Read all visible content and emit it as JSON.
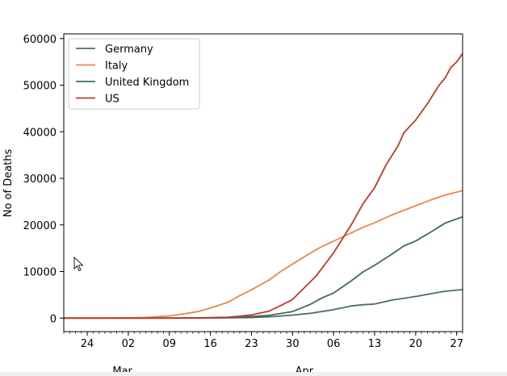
{
  "chart_data": {
    "type": "line",
    "title": "",
    "xlabel": "",
    "ylabel": "No of Deaths",
    "ylim": [
      -2900,
      61000
    ],
    "yticks": [
      0,
      10000,
      20000,
      30000,
      40000,
      50000,
      60000
    ],
    "x_date_range": [
      "2020-02-20",
      "2020-04-28"
    ],
    "x_major_ticks": [
      {
        "date": "2020-02-24",
        "label": "24"
      },
      {
        "date": "2020-03-02",
        "label": "02"
      },
      {
        "date": "2020-03-09",
        "label": "09"
      },
      {
        "date": "2020-03-16",
        "label": "16"
      },
      {
        "date": "2020-03-23",
        "label": "23"
      },
      {
        "date": "2020-03-30",
        "label": "30"
      },
      {
        "date": "2020-04-06",
        "label": "06"
      },
      {
        "date": "2020-04-13",
        "label": "13"
      },
      {
        "date": "2020-04-20",
        "label": "20"
      },
      {
        "date": "2020-04-27",
        "label": "27"
      }
    ],
    "x_month_labels": [
      {
        "date": "2020-03-01",
        "label": "Mar"
      },
      {
        "date": "2020-04-01",
        "label": "Apr"
      }
    ],
    "legend_position": "top-left",
    "grid": false,
    "series": [
      {
        "name": "Germany",
        "color": "#4e6e5d",
        "points": [
          [
            "2020-02-20",
            0
          ],
          [
            "2020-03-09",
            2
          ],
          [
            "2020-03-16",
            17
          ],
          [
            "2020-03-20",
            67
          ],
          [
            "2020-03-23",
            123
          ],
          [
            "2020-03-27",
            351
          ],
          [
            "2020-03-30",
            645
          ],
          [
            "2020-04-02",
            1017
          ],
          [
            "2020-04-06",
            1810
          ],
          [
            "2020-04-09",
            2607
          ],
          [
            "2020-04-11",
            2871
          ],
          [
            "2020-04-13",
            3022
          ],
          [
            "2020-04-16",
            3868
          ],
          [
            "2020-04-20",
            4642
          ],
          [
            "2020-04-23",
            5321
          ],
          [
            "2020-04-25",
            5760
          ],
          [
            "2020-04-28",
            6126
          ]
        ]
      },
      {
        "name": "Italy",
        "color": "#e8884c",
        "points": [
          [
            "2020-02-20",
            0
          ],
          [
            "2020-02-27",
            17
          ],
          [
            "2020-03-02",
            52
          ],
          [
            "2020-03-05",
            148
          ],
          [
            "2020-03-09",
            463
          ],
          [
            "2020-03-12",
            1016
          ],
          [
            "2020-03-14",
            1441
          ],
          [
            "2020-03-16",
            2158
          ],
          [
            "2020-03-19",
            3405
          ],
          [
            "2020-03-21",
            4825
          ],
          [
            "2020-03-23",
            6077
          ],
          [
            "2020-03-26",
            8165
          ],
          [
            "2020-03-28",
            10023
          ],
          [
            "2020-03-30",
            11591
          ],
          [
            "2020-04-02",
            13915
          ],
          [
            "2020-04-04",
            15362
          ],
          [
            "2020-04-06",
            16523
          ],
          [
            "2020-04-09",
            18279
          ],
          [
            "2020-04-11",
            19468
          ],
          [
            "2020-04-13",
            20465
          ],
          [
            "2020-04-16",
            22170
          ],
          [
            "2020-04-20",
            24114
          ],
          [
            "2020-04-23",
            25549
          ],
          [
            "2020-04-25",
            26384
          ],
          [
            "2020-04-28",
            27359
          ]
        ]
      },
      {
        "name": "United Kingdom",
        "color": "#3f6b55",
        "points": [
          [
            "2020-02-20",
            0
          ],
          [
            "2020-03-09",
            4
          ],
          [
            "2020-03-16",
            56
          ],
          [
            "2020-03-20",
            178
          ],
          [
            "2020-03-23",
            335
          ],
          [
            "2020-03-26",
            578
          ],
          [
            "2020-03-30",
            1415
          ],
          [
            "2020-04-02",
            2926
          ],
          [
            "2020-04-04",
            4320
          ],
          [
            "2020-04-06",
            5385
          ],
          [
            "2020-04-09",
            7993
          ],
          [
            "2020-04-11",
            9892
          ],
          [
            "2020-04-13",
            11347
          ],
          [
            "2020-04-16",
            13759
          ],
          [
            "2020-04-18",
            15498
          ],
          [
            "2020-04-20",
            16550
          ],
          [
            "2020-04-23",
            18791
          ],
          [
            "2020-04-25",
            20381
          ],
          [
            "2020-04-28",
            21745
          ]
        ]
      },
      {
        "name": "US",
        "color": "#c0392b",
        "points": [
          [
            "2020-02-20",
            0
          ],
          [
            "2020-03-02",
            6
          ],
          [
            "2020-03-09",
            22
          ],
          [
            "2020-03-16",
            97
          ],
          [
            "2020-03-19",
            200
          ],
          [
            "2020-03-21",
            400
          ],
          [
            "2020-03-23",
            700
          ],
          [
            "2020-03-26",
            1500
          ],
          [
            "2020-03-28",
            2700
          ],
          [
            "2020-03-30",
            4000
          ],
          [
            "2020-04-01",
            6500
          ],
          [
            "2020-04-03",
            9000
          ],
          [
            "2020-04-06",
            14000
          ],
          [
            "2020-04-09",
            20000
          ],
          [
            "2020-04-11",
            24500
          ],
          [
            "2020-04-13",
            28000
          ],
          [
            "2020-04-15",
            33000
          ],
          [
            "2020-04-17",
            37000
          ],
          [
            "2020-04-18",
            39800
          ],
          [
            "2020-04-20",
            42500
          ],
          [
            "2020-04-22",
            46000
          ],
          [
            "2020-04-24",
            50000
          ],
          [
            "2020-04-25",
            51500
          ],
          [
            "2020-04-26",
            53800
          ],
          [
            "2020-04-27",
            55000
          ],
          [
            "2020-04-28",
            56800
          ]
        ]
      }
    ]
  }
}
